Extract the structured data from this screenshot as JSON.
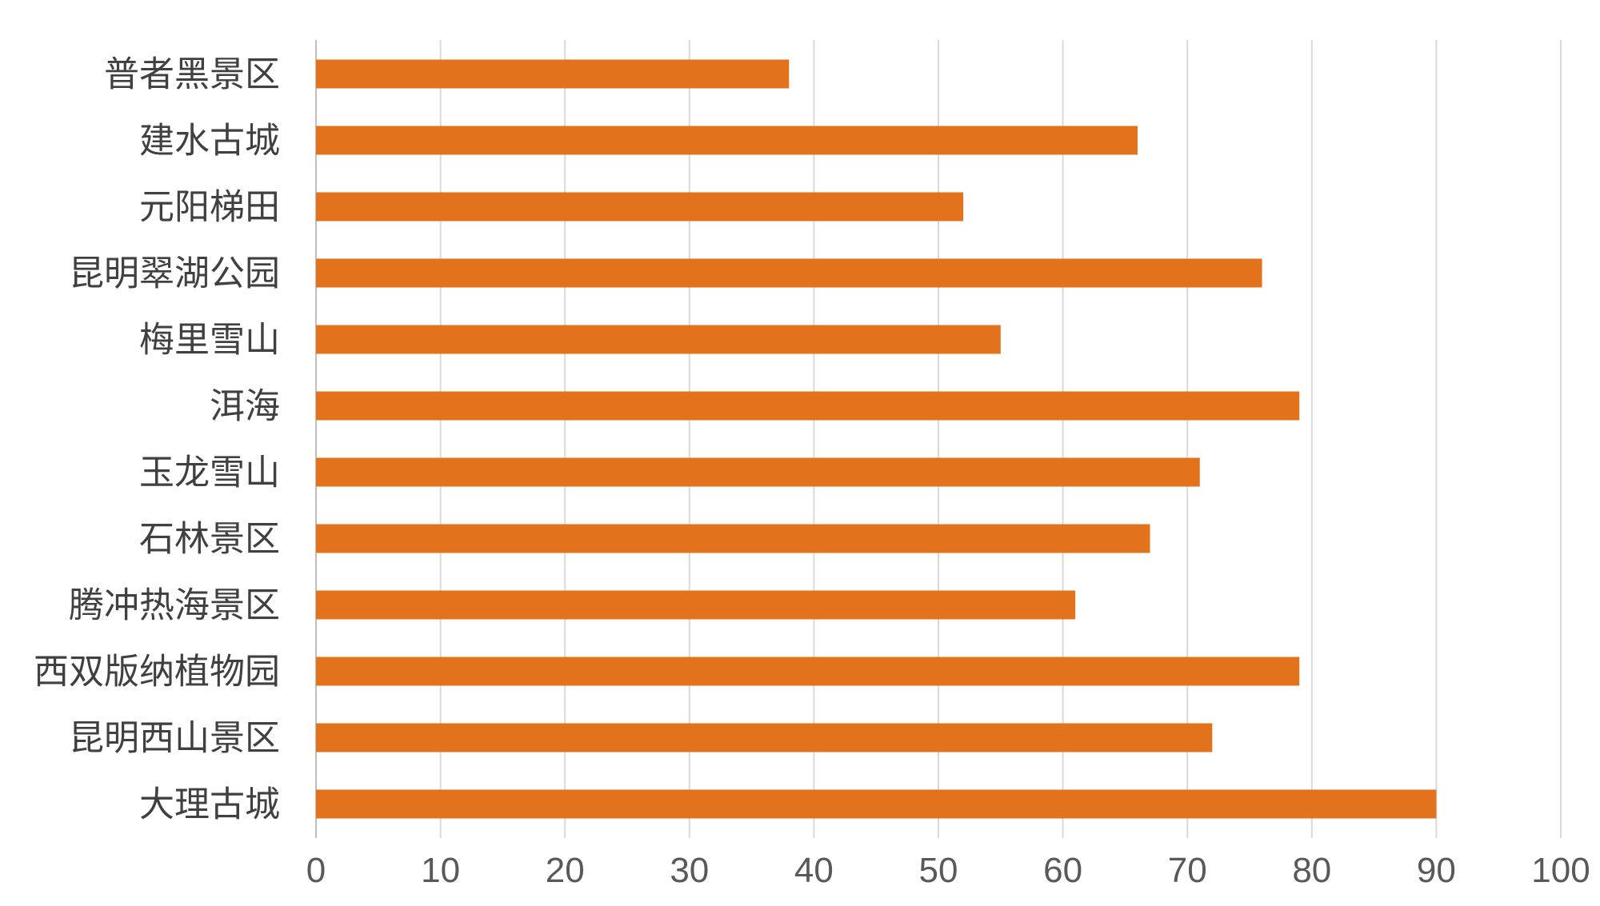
{
  "chart_data": {
    "type": "bar",
    "orientation": "horizontal",
    "categories": [
      "普者黑景区",
      "建水古城",
      "元阳梯田",
      "昆明翠湖公园",
      "梅里雪山",
      "洱海",
      "玉龙雪山",
      "石林景区",
      "腾冲热海景区",
      "西双版纳植物园",
      "昆明西山景区",
      "大理古城"
    ],
    "values": [
      38,
      66,
      52,
      76,
      55,
      79,
      71,
      67,
      61,
      79,
      72,
      90
    ],
    "xlim": [
      0,
      100
    ],
    "xticks": [
      0,
      10,
      20,
      30,
      40,
      50,
      60,
      70,
      80,
      90,
      100
    ],
    "title": "",
    "xlabel": "",
    "ylabel": "",
    "grid": "vertical",
    "legend": "none",
    "colors": {
      "bar": "#E2731C",
      "grid": "#D9D9D9",
      "axis": "#BFBFBF",
      "category_text": "#404040",
      "tick_text": "#595959"
    }
  }
}
